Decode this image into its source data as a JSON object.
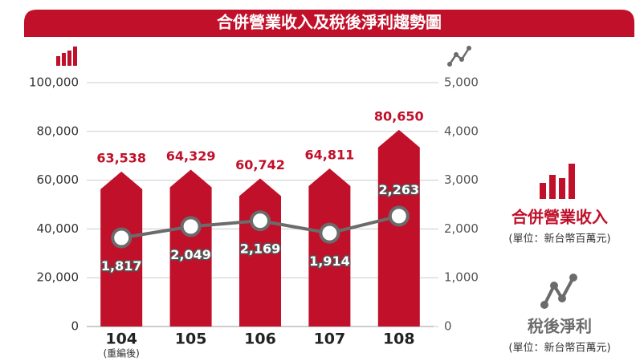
{
  "chart_data": {
    "type": "bar_line",
    "title": "合併營業收入及稅後淨利趨勢圖",
    "categories": [
      "104",
      "105",
      "106",
      "107",
      "108"
    ],
    "category_note": "(重編後)",
    "series": [
      {
        "name": "合併營業收入",
        "unit": "(單位：新台幣百萬元)",
        "type": "bar",
        "color": "#c0102a",
        "values": [
          63538,
          64329,
          60742,
          64811,
          80650
        ],
        "value_labels": [
          "63,538",
          "64,329",
          "60,742",
          "64,811",
          "80,650"
        ]
      },
      {
        "name": "稅後淨利",
        "unit": "(單位：新台幣百萬元)",
        "type": "line",
        "axis": "y2",
        "color": "#6b6b6b",
        "values": [
          1817,
          2049,
          2169,
          1914,
          2263
        ],
        "value_labels": [
          "1,817",
          "2,049",
          "2,169",
          "1,914",
          "2,263"
        ]
      }
    ],
    "ylim": [
      0,
      100000
    ],
    "yticks": [
      0,
      {
        "value": 20000,
        "label": "20,000"
      },
      {
        "value": 40000,
        "label": "40,000"
      },
      {
        "value": 60000,
        "label": "60,000"
      },
      {
        "value": 80000,
        "label": "80,000"
      },
      {
        "value": 100000,
        "label": "100,000"
      }
    ],
    "y2lim": [
      0,
      5000
    ],
    "y2ticks": [
      0,
      {
        "value": 1000,
        "label": "1,000"
      },
      {
        "value": 2000,
        "label": "2,000"
      },
      {
        "value": 3000,
        "label": "3,000"
      },
      {
        "value": 4000,
        "label": "4,000"
      },
      {
        "value": 5000,
        "label": "5,000"
      }
    ],
    "grid": true
  }
}
